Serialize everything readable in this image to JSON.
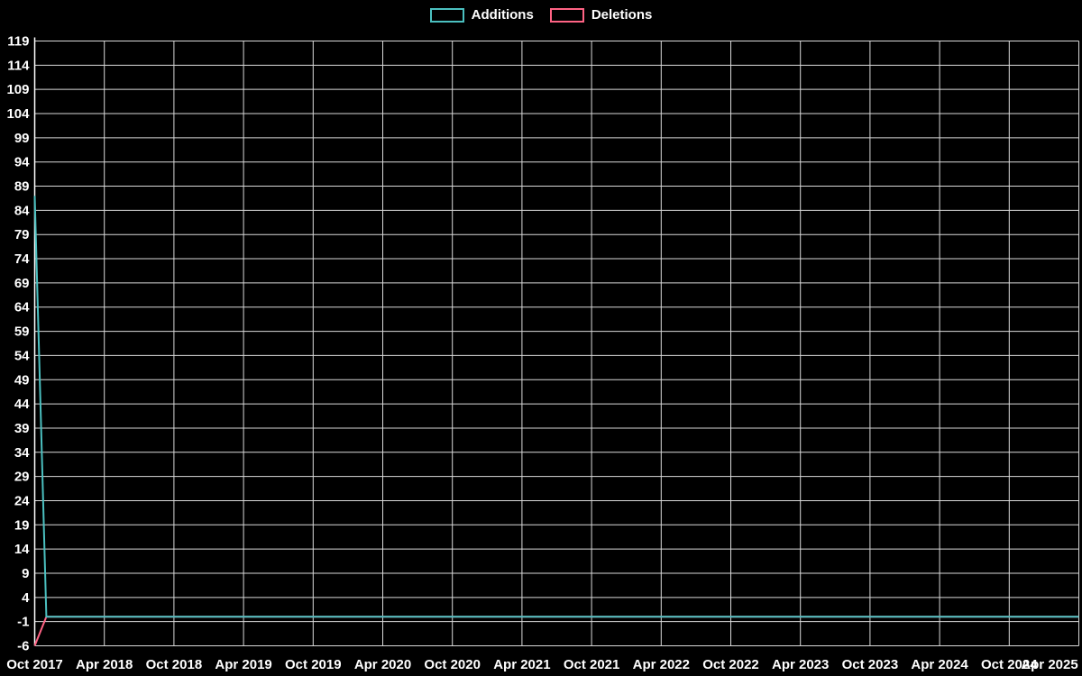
{
  "chart": {
    "background": "#000000",
    "grid_color": "#d9d9d9",
    "axis_color": "#ffffff",
    "text_color": "#ffffff",
    "legend": {
      "items": [
        {
          "label": "Additions",
          "color": "#4bc0c0"
        },
        {
          "label": "Deletions",
          "color": "#ff6384"
        }
      ]
    }
  },
  "chart_data": {
    "type": "line",
    "title": "",
    "xlabel": "",
    "ylabel": "",
    "legend_position": "top-center",
    "grid": true,
    "x_tick_labels": [
      "Oct 2017",
      "Apr 2018",
      "Oct 2018",
      "Apr 2019",
      "Oct 2019",
      "Apr 2020",
      "Oct 2020",
      "Apr 2021",
      "Oct 2021",
      "Apr 2022",
      "Oct 2022",
      "Apr 2023",
      "Oct 2023",
      "Apr 2024",
      "Oct 2024",
      "Apr 2025"
    ],
    "x_tick_positions_months": [
      0,
      6,
      12,
      18,
      24,
      30,
      36,
      42,
      48,
      54,
      60,
      66,
      72,
      78,
      84,
      90
    ],
    "x_range_months": [
      0,
      90
    ],
    "y_ticks": [
      -6,
      -1,
      4,
      9,
      14,
      19,
      24,
      29,
      34,
      39,
      44,
      49,
      54,
      59,
      64,
      69,
      74,
      79,
      84,
      89,
      94,
      99,
      104,
      109,
      114,
      119
    ],
    "ylim": [
      -6,
      119
    ],
    "series": [
      {
        "name": "Deletions",
        "color": "#ff6384",
        "points": [
          [
            0,
            -6
          ],
          [
            1,
            0
          ],
          [
            90,
            0
          ]
        ]
      },
      {
        "name": "Additions",
        "color": "#4bc0c0",
        "points": [
          [
            0,
            87
          ],
          [
            1,
            0
          ],
          [
            90,
            0
          ]
        ]
      }
    ]
  }
}
